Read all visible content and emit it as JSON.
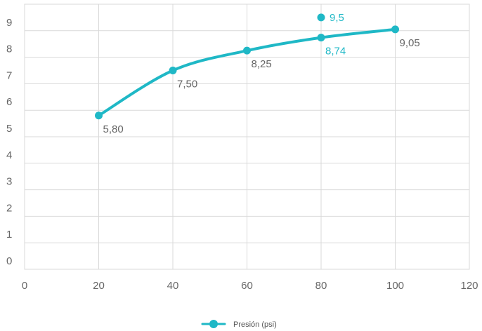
{
  "chart_data": {
    "type": "line",
    "x": [
      20,
      40,
      60,
      80,
      100
    ],
    "series": [
      {
        "name": "Presión (psi)",
        "color": "#1fb8c6",
        "values": [
          5.8,
          7.5,
          8.25,
          8.74,
          9.05
        ],
        "labels": [
          "5,80",
          "7,50",
          "8,25",
          "8,74",
          "9,05"
        ]
      }
    ],
    "extra_point": {
      "x": 80,
      "y": 9.5,
      "label": "9,5"
    },
    "xlim": [
      0,
      120
    ],
    "ylim": [
      0,
      10
    ],
    "x_ticks": [
      0,
      20,
      40,
      60,
      80,
      100,
      120
    ],
    "x_tick_labels": [
      "0",
      "20",
      "40",
      "60",
      "80",
      "100",
      "120"
    ],
    "y_ticks": [
      0,
      1,
      2,
      3,
      4,
      5,
      6,
      7,
      8,
      9
    ],
    "y_tick_labels": [
      "0",
      "1",
      "2",
      "3",
      "4",
      "5",
      "6",
      "7",
      "8",
      "9"
    ],
    "grid": true,
    "legend_position": "bottom-center",
    "title": "",
    "xlabel": "",
    "ylabel": "",
    "colors": {
      "grid": "#d9d9d9",
      "axis_text": "#666666",
      "label_dark": "#666666",
      "label_accent": "#1fb8c6"
    }
  }
}
